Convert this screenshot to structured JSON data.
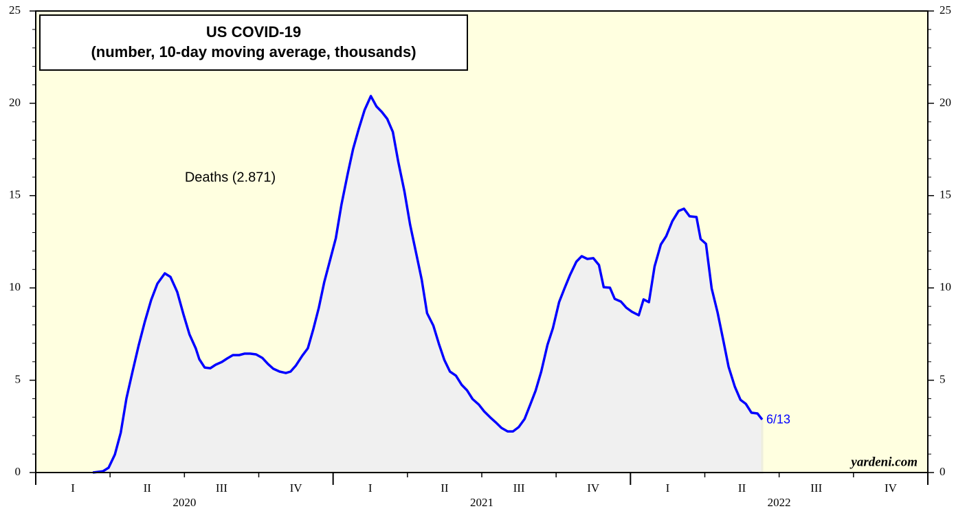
{
  "chart_data": {
    "type": "area_line",
    "title": "US COVID-19",
    "subtitle": "(number, 10-day moving average, thousands)",
    "x": [
      2020.192,
      2020.226,
      2020.245,
      2020.266,
      2020.286,
      2020.305,
      2020.326,
      2020.346,
      2020.367,
      2020.388,
      2020.409,
      2020.434,
      2020.453,
      2020.476,
      2020.497,
      2020.517,
      2020.538,
      2020.55,
      2020.568,
      2020.587,
      2020.605,
      2020.626,
      2020.644,
      2020.663,
      2020.684,
      2020.702,
      2020.721,
      2020.741,
      2020.762,
      2020.781,
      2020.799,
      2020.82,
      2020.841,
      2020.857,
      2020.875,
      2020.896,
      2020.915,
      2020.933,
      2020.952,
      2020.97,
      2020.989,
      2021.009,
      2021.028,
      2021.049,
      2021.067,
      2021.086,
      2021.106,
      2021.127,
      2021.146,
      2021.164,
      2021.182,
      2021.201,
      2021.219,
      2021.24,
      2021.259,
      2021.279,
      2021.298,
      2021.316,
      2021.337,
      2021.356,
      2021.374,
      2021.393,
      2021.413,
      2021.432,
      2021.45,
      2021.469,
      2021.49,
      2021.508,
      2021.529,
      2021.547,
      2021.566,
      2021.587,
      2021.605,
      2021.624,
      2021.644,
      2021.663,
      2021.681,
      2021.7,
      2021.721,
      2021.739,
      2021.76,
      2021.778,
      2021.797,
      2021.818,
      2021.836,
      2021.855,
      2021.875,
      2021.894,
      2021.91,
      2021.931,
      2021.947,
      2021.968,
      2021.986,
      2022.005,
      2022.028,
      2022.044,
      2022.062,
      2022.081,
      2022.102,
      2022.12,
      2022.141,
      2022.162,
      2022.18,
      2022.199,
      2022.222,
      2022.236,
      2022.254,
      2022.273,
      2022.293,
      2022.312,
      2022.33,
      2022.351,
      2022.37,
      2022.388,
      2022.407,
      2022.427,
      2022.443
    ],
    "series": [
      {
        "name": "Deaths (2.871)",
        "color": "#0000ff",
        "fill": "#f0f0f0",
        "values": [
          0,
          0.07,
          0.26,
          0.97,
          2.16,
          4.02,
          5.5,
          6.88,
          8.18,
          9.34,
          10.23,
          10.79,
          10.6,
          9.78,
          8.56,
          7.48,
          6.73,
          6.14,
          5.69,
          5.65,
          5.84,
          5.99,
          6.18,
          6.36,
          6.36,
          6.44,
          6.44,
          6.4,
          6.21,
          5.88,
          5.62,
          5.47,
          5.39,
          5.47,
          5.8,
          6.32,
          6.73,
          7.74,
          8.93,
          10.3,
          11.46,
          12.69,
          14.51,
          16.18,
          17.52,
          18.6,
          19.64,
          20.39,
          19.83,
          19.53,
          19.16,
          18.45,
          16.85,
          15.22,
          13.43,
          11.9,
          10.45,
          8.63,
          7.96,
          6.96,
          6.1,
          5.47,
          5.25,
          4.76,
          4.46,
          3.98,
          3.68,
          3.31,
          2.98,
          2.72,
          2.42,
          2.23,
          2.23,
          2.46,
          2.9,
          3.68,
          4.43,
          5.47,
          6.92,
          7.81,
          9.23,
          9.97,
          10.71,
          11.42,
          11.72,
          11.57,
          11.61,
          11.24,
          10.04,
          10.01,
          9.41,
          9.26,
          8.93,
          8.71,
          8.52,
          9.38,
          9.23,
          11.16,
          12.35,
          12.8,
          13.62,
          14.17,
          14.29,
          13.88,
          13.84,
          12.65,
          12.39,
          9.97,
          8.67,
          7.18,
          5.73,
          4.65,
          3.94,
          3.72,
          3.24,
          3.2,
          2.871
        ],
        "end_label": "6/13"
      }
    ],
    "xlim": [
      2020,
      2023
    ],
    "xticks": [
      2020,
      2021,
      2022,
      2023
    ],
    "years": [
      2020,
      2021,
      2022
    ],
    "quarters": [
      "I",
      "II",
      "III",
      "IV"
    ],
    "ylim": [
      0,
      25
    ],
    "yticks": [
      0,
      5,
      10,
      15,
      20,
      25
    ],
    "minor_yticks": [
      1,
      2,
      3,
      4,
      6,
      7,
      8,
      9,
      11,
      12,
      13,
      14,
      16,
      17,
      18,
      19,
      21,
      22,
      23,
      24
    ],
    "background": "#ffffe0",
    "source": "yardeni.com"
  }
}
